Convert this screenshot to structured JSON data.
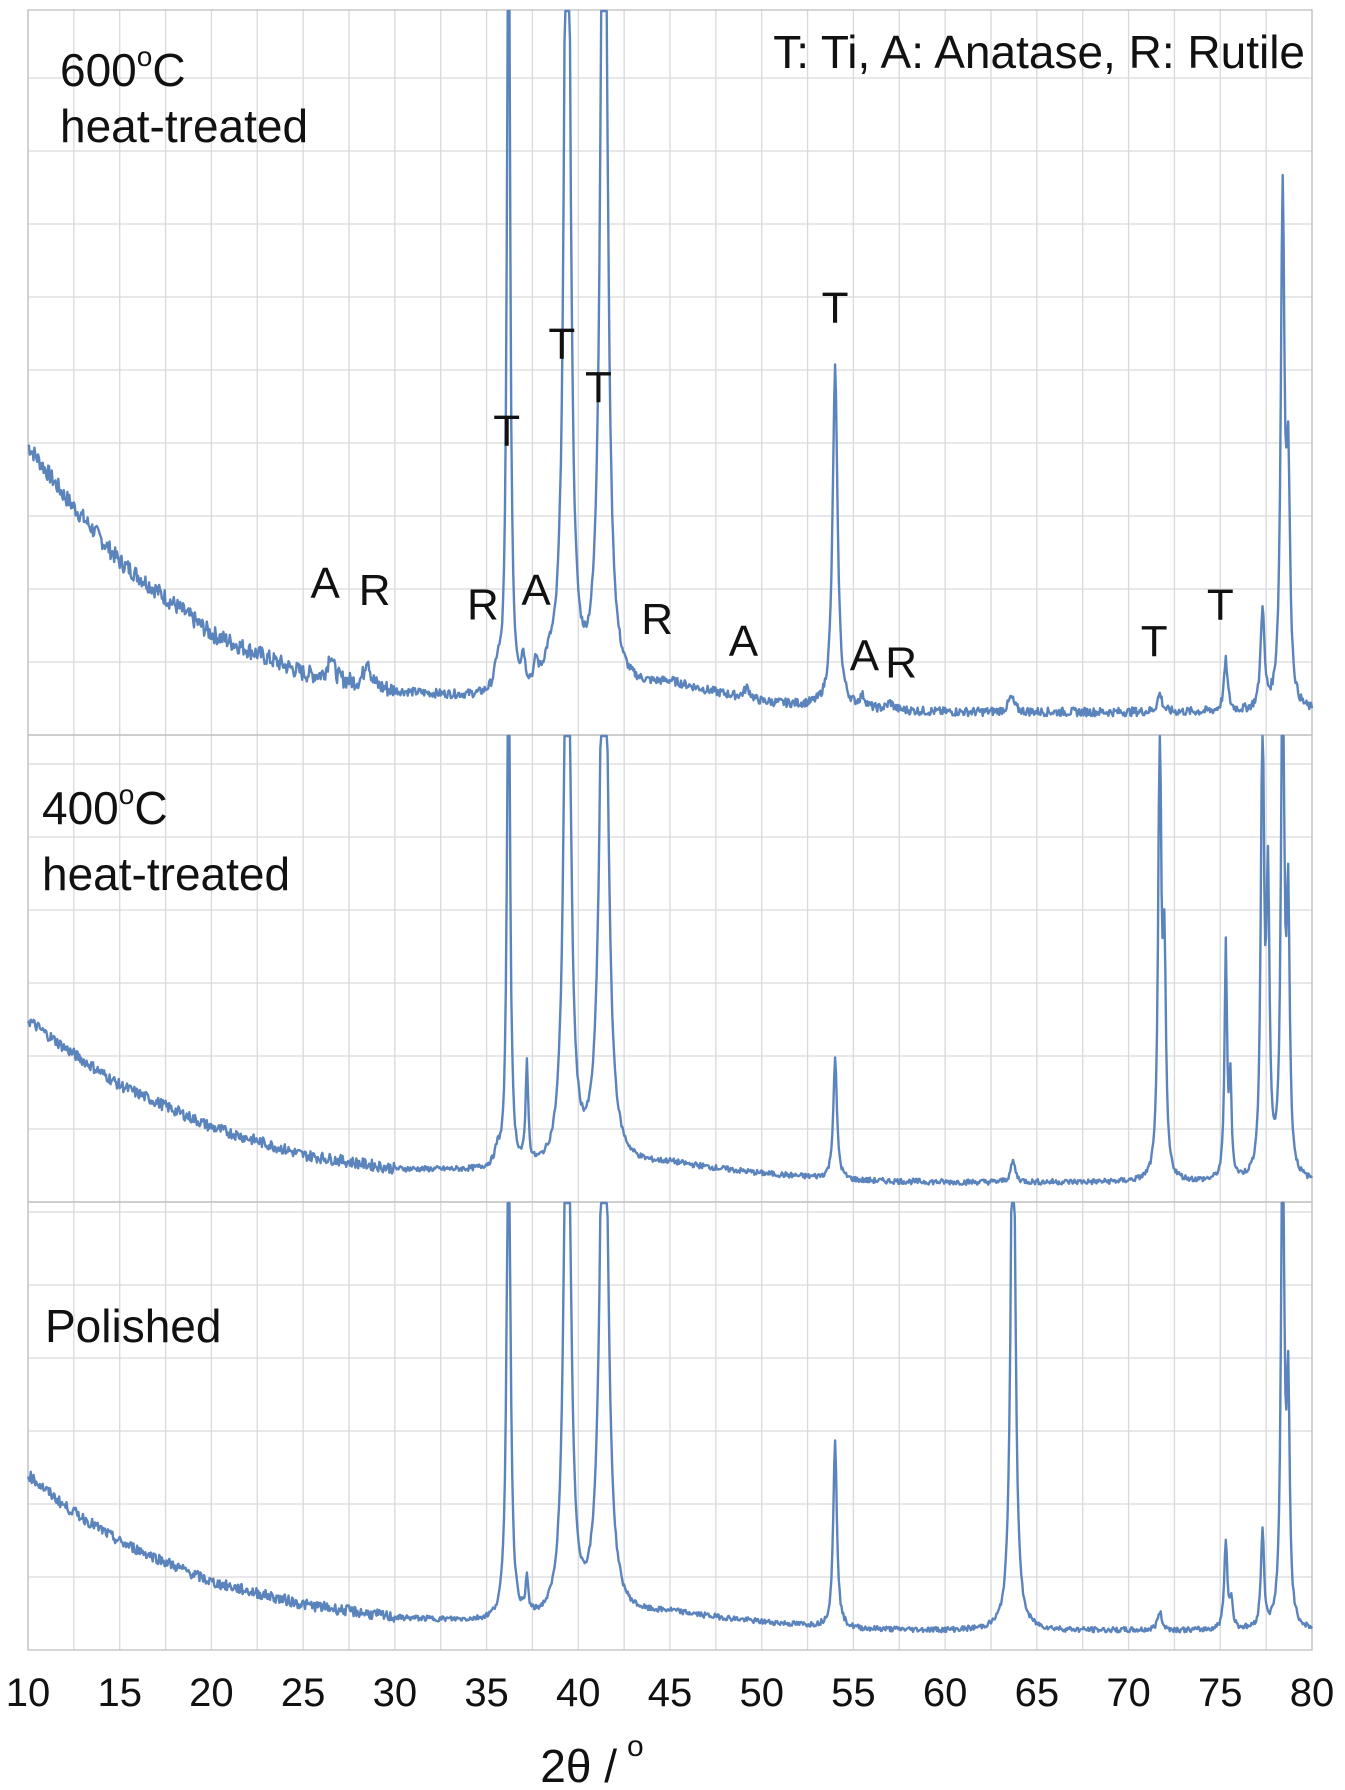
{
  "chart_data": {
    "type": "line",
    "xlabel": "2θ / °",
    "xlabel_text": "2θ /",
    "xlabel_unit": "o",
    "xlim": [
      10,
      80
    ],
    "x_ticks": [
      "10",
      "15",
      "20",
      "25",
      "30",
      "35",
      "40",
      "45",
      "50",
      "55",
      "60",
      "65",
      "70",
      "75",
      "80"
    ],
    "legend_note": "T: Ti, A: Anatase, R: Rutile",
    "grid": true,
    "line_color": "#5b84bd",
    "panels": [
      {
        "id": "600",
        "title_lines": [
          "600 °C",
          "heat-treated"
        ],
        "title_temp": "600",
        "title_unit": "o",
        "title_c": "C",
        "title_line2": "heat-treated",
        "background": [
          [
            10,
            0.38
          ],
          [
            12,
            0.31
          ],
          [
            15,
            0.22
          ],
          [
            20,
            0.12
          ],
          [
            25,
            0.065
          ],
          [
            30,
            0.04
          ],
          [
            35,
            0.03
          ],
          [
            40,
            0.025
          ],
          [
            45,
            0.05
          ],
          [
            50,
            0.025
          ],
          [
            55,
            0.015
          ],
          [
            60,
            0.012
          ],
          [
            65,
            0.012
          ],
          [
            70,
            0.012
          ],
          [
            75,
            0.012
          ],
          [
            80,
            0.012
          ]
        ],
        "peaks": [
          {
            "x": 26.5,
            "h": 0.035,
            "w": 0.18
          },
          {
            "x": 28.5,
            "h": 0.04,
            "w": 0.18
          },
          {
            "x": 35.6,
            "h": 0.03,
            "w": 0.18
          },
          {
            "x": 36.2,
            "h": 1.2,
            "w": 0.1
          },
          {
            "x": 37.0,
            "h": 0.04,
            "w": 0.12
          },
          {
            "x": 37.7,
            "h": 0.03,
            "w": 0.12
          },
          {
            "x": 38.4,
            "h": 0.03,
            "w": 0.4
          },
          {
            "x": 39.4,
            "h": 1.5,
            "w": 0.18
          },
          {
            "x": 41.4,
            "h": 1.5,
            "w": 0.2
          },
          {
            "x": 49.2,
            "h": 0.015,
            "w": 0.2
          },
          {
            "x": 54.0,
            "h": 0.47,
            "w": 0.16
          },
          {
            "x": 55.5,
            "h": 0.015,
            "w": 0.2
          },
          {
            "x": 57.0,
            "h": 0.01,
            "w": 0.2
          },
          {
            "x": 63.6,
            "h": 0.02,
            "w": 0.2
          },
          {
            "x": 71.7,
            "h": 0.025,
            "w": 0.15
          },
          {
            "x": 75.3,
            "h": 0.07,
            "w": 0.12
          },
          {
            "x": 77.3,
            "h": 0.14,
            "w": 0.12
          },
          {
            "x": 78.4,
            "h": 0.7,
            "w": 0.12
          },
          {
            "x": 78.7,
            "h": 0.3,
            "w": 0.12
          }
        ],
        "labels": [
          {
            "text": "A",
            "x": 26.2,
            "y": 0.17
          },
          {
            "text": "R",
            "x": 28.9,
            "y": 0.16
          },
          {
            "text": "R",
            "x": 34.8,
            "y": 0.14
          },
          {
            "text": "A",
            "x": 37.7,
            "y": 0.16
          },
          {
            "text": "T",
            "x": 36.1,
            "y": 0.38
          },
          {
            "text": "T",
            "x": 39.1,
            "y": 0.5
          },
          {
            "text": "T",
            "x": 41.1,
            "y": 0.44
          },
          {
            "text": "R",
            "x": 44.3,
            "y": 0.12
          },
          {
            "text": "A",
            "x": 49.0,
            "y": 0.09
          },
          {
            "text": "T",
            "x": 54.0,
            "y": 0.55
          },
          {
            "text": "A",
            "x": 55.6,
            "y": 0.07
          },
          {
            "text": "R",
            "x": 57.6,
            "y": 0.06
          },
          {
            "text": "T",
            "x": 71.4,
            "y": 0.09
          },
          {
            "text": "T",
            "x": 75.0,
            "y": 0.14
          }
        ]
      },
      {
        "id": "400",
        "title_lines": [
          "400 °C",
          "heat-treated"
        ],
        "title_temp": "400",
        "title_unit": "o",
        "title_c": "C",
        "title_line2": "heat-treated",
        "background": [
          [
            10,
            0.36
          ],
          [
            12,
            0.3
          ],
          [
            15,
            0.22
          ],
          [
            20,
            0.13
          ],
          [
            25,
            0.07
          ],
          [
            30,
            0.04
          ],
          [
            35,
            0.035
          ],
          [
            40,
            0.03
          ],
          [
            45,
            0.05
          ],
          [
            50,
            0.03
          ],
          [
            55,
            0.015
          ],
          [
            60,
            0.012
          ],
          [
            65,
            0.012
          ],
          [
            70,
            0.012
          ],
          [
            75,
            0.012
          ],
          [
            80,
            0.012
          ]
        ],
        "peaks": [
          {
            "x": 35.6,
            "h": 0.03,
            "w": 0.18
          },
          {
            "x": 36.2,
            "h": 1.2,
            "w": 0.1
          },
          {
            "x": 37.2,
            "h": 0.22,
            "w": 0.08
          },
          {
            "x": 39.4,
            "h": 1.5,
            "w": 0.2
          },
          {
            "x": 41.4,
            "h": 1.5,
            "w": 0.24
          },
          {
            "x": 54.0,
            "h": 0.26,
            "w": 0.12
          },
          {
            "x": 63.7,
            "h": 0.045,
            "w": 0.15
          },
          {
            "x": 71.7,
            "h": 0.95,
            "w": 0.1
          },
          {
            "x": 71.95,
            "h": 0.45,
            "w": 0.1
          },
          {
            "x": 75.3,
            "h": 0.5,
            "w": 0.08
          },
          {
            "x": 75.55,
            "h": 0.2,
            "w": 0.08
          },
          {
            "x": 77.3,
            "h": 1.0,
            "w": 0.1
          },
          {
            "x": 77.6,
            "h": 0.6,
            "w": 0.1
          },
          {
            "x": 78.4,
            "h": 1.2,
            "w": 0.1
          },
          {
            "x": 78.7,
            "h": 0.55,
            "w": 0.1
          }
        ],
        "labels": []
      },
      {
        "id": "polished",
        "title_lines": [
          "Polished"
        ],
        "title_temp": "",
        "title_unit": "",
        "title_c": "",
        "title_line2": "Polished",
        "background": [
          [
            10,
            0.36
          ],
          [
            12,
            0.29
          ],
          [
            15,
            0.21
          ],
          [
            20,
            0.12
          ],
          [
            25,
            0.07
          ],
          [
            30,
            0.04
          ],
          [
            35,
            0.03
          ],
          [
            40,
            0.025
          ],
          [
            45,
            0.05
          ],
          [
            50,
            0.03
          ],
          [
            55,
            0.015
          ],
          [
            60,
            0.012
          ],
          [
            65,
            0.012
          ],
          [
            70,
            0.012
          ],
          [
            75,
            0.012
          ],
          [
            80,
            0.012
          ]
        ],
        "peaks": [
          {
            "x": 36.2,
            "h": 1.2,
            "w": 0.12
          },
          {
            "x": 37.2,
            "h": 0.08,
            "w": 0.08
          },
          {
            "x": 39.4,
            "h": 1.5,
            "w": 0.2
          },
          {
            "x": 41.4,
            "h": 1.5,
            "w": 0.24
          },
          {
            "x": 54.0,
            "h": 0.42,
            "w": 0.12
          },
          {
            "x": 63.7,
            "h": 1.4,
            "w": 0.14
          },
          {
            "x": 71.7,
            "h": 0.04,
            "w": 0.15
          },
          {
            "x": 75.3,
            "h": 0.2,
            "w": 0.1
          },
          {
            "x": 75.6,
            "h": 0.06,
            "w": 0.1
          },
          {
            "x": 77.3,
            "h": 0.22,
            "w": 0.1
          },
          {
            "x": 78.4,
            "h": 1.2,
            "w": 0.1
          },
          {
            "x": 78.7,
            "h": 0.5,
            "w": 0.1
          }
        ],
        "labels": []
      }
    ]
  }
}
